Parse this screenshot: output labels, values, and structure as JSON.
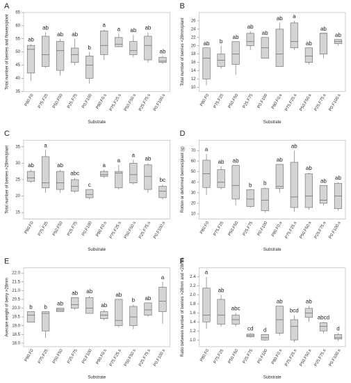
{
  "chart_data": [
    {
      "type": "box",
      "title": "A",
      "y_label": "Total number of berries and flowers/plant",
      "x_label": "Substrate",
      "categories": [
        "P80.F0",
        "P75.F25",
        "P50.F50",
        "P25.F75",
        "P0.F100",
        "P80.F0.s",
        "P75.F25.s",
        "P50.F50.s",
        "P25.F75.s",
        "P0.F100.s"
      ],
      "min": [
        39,
        44,
        41,
        45,
        38,
        47,
        52,
        48,
        46,
        45.5
      ],
      "q1": [
        42,
        44.5,
        43,
        46,
        40,
        49,
        52,
        49,
        47,
        46
      ],
      "median": [
        51,
        49,
        50.5,
        49,
        45,
        52.5,
        53,
        50.5,
        52.5,
        46.5
      ],
      "q3": [
        52.5,
        56,
        54,
        51.5,
        48.5,
        58,
        55.5,
        54,
        56,
        48
      ],
      "max": [
        53,
        57.5,
        55,
        55,
        50,
        58.5,
        57,
        56.5,
        57.5,
        48.5
      ],
      "annotations": [
        "ab",
        "ab",
        "ab",
        "ab",
        "b",
        "a",
        "a",
        "ab",
        "ab",
        "ab"
      ],
      "color": "#d4d4d4",
      "ylim": [
        35,
        65
      ],
      "yticks": [
        35,
        40,
        45,
        50,
        55,
        60,
        65
      ]
    },
    {
      "type": "box",
      "title": "B",
      "y_label": "Total number of berries <28mm/plant",
      "x_label": "Substrate",
      "categories": [
        "P80.F0",
        "P75.F25",
        "P50.F50",
        "P25.F75",
        "P0.F100",
        "P80.F0.s",
        "P75.F25.s",
        "P50.F50.s",
        "P25.F75.s",
        "P0.F100.s"
      ],
      "min": [
        10.5,
        14.5,
        13,
        19,
        17,
        15,
        19,
        15.5,
        17,
        20
      ],
      "q1": [
        12,
        15,
        15.5,
        20,
        17,
        15,
        19.5,
        16,
        18,
        20.5
      ],
      "median": [
        17,
        16.5,
        18,
        21,
        19.5,
        18,
        21,
        17.5,
        23,
        21
      ],
      "q3": [
        19.5,
        18,
        21,
        23,
        22,
        24,
        25.5,
        19.5,
        23,
        21.5
      ],
      "max": [
        19.5,
        20,
        21,
        23.5,
        22,
        25.5,
        26,
        19.5,
        23,
        21.5
      ],
      "annotations": [
        "ab",
        "b",
        "ab",
        "ab",
        "ab",
        "ab",
        "a",
        "ab",
        "ab",
        "ab"
      ],
      "color": "#d4d4d4",
      "ylim": [
        9,
        28
      ],
      "yticks": [
        10,
        12,
        14,
        16,
        18,
        20,
        22,
        24,
        26
      ]
    },
    {
      "type": "box",
      "title": "C",
      "y_label": "Total number of berries >28mm/plant",
      "x_label": "Substrate",
      "categories": [
        "P80.F0",
        "P75.F25",
        "P50.F50",
        "P25.F75",
        "P0.F100",
        "P80.F0.s",
        "P75.F25.s",
        "P50.F50.s",
        "P25.F75.s",
        "P0.F100.s"
      ],
      "min": [
        24,
        21,
        21,
        21,
        19,
        25.5,
        22,
        23.5,
        21,
        19
      ],
      "q1": [
        24.5,
        22.5,
        22,
        21.5,
        19.5,
        26,
        22.5,
        24,
        22,
        19.5
      ],
      "median": [
        25.5,
        24,
        24,
        23,
        20.5,
        26.5,
        27,
        26.5,
        26,
        21.5
      ],
      "q3": [
        27.5,
        32,
        27.5,
        25,
        22,
        27.5,
        27.5,
        30,
        29.5,
        23
      ],
      "max": [
        28,
        34,
        28,
        25.5,
        22,
        28,
        29.5,
        31,
        30,
        23.5
      ],
      "annotations": [
        "ab",
        "a",
        "ab",
        "abc",
        "c",
        "a",
        "a",
        "a",
        "ab",
        "bc"
      ],
      "color": "#d4d4d4",
      "ylim": [
        13,
        37
      ],
      "yticks": [
        15,
        20,
        25,
        30,
        35
      ]
    },
    {
      "type": "box",
      "title": "D",
      "y_label": "Rotten or deformed berries/plant (g)",
      "x_label": "Substrate",
      "categories": [
        "P80.F0",
        "P75.F25",
        "P50.F50",
        "P25.F75",
        "P0.F100",
        "P80.F0.s",
        "P75.F25.s",
        "P50.F50.s",
        "P25.F75.s",
        "P0.F100.s"
      ],
      "min": [
        28,
        33,
        18,
        16,
        11,
        30,
        12,
        14,
        18,
        13
      ],
      "q1": [
        35,
        35,
        24,
        17,
        13,
        34,
        16,
        16,
        20,
        15
      ],
      "median": [
        48,
        40,
        37,
        24,
        23,
        36,
        26,
        27,
        23,
        27
      ],
      "q3": [
        61,
        52,
        56,
        33,
        34,
        57,
        59,
        48,
        37,
        39
      ],
      "max": [
        67,
        55,
        56,
        33,
        35,
        57,
        70,
        49,
        37,
        40
      ],
      "annotations": [
        "a",
        "ab",
        "ab",
        "b",
        "b",
        "ab",
        "ab",
        "ab",
        "ab",
        "ab"
      ],
      "color": "#d4d4d4",
      "ylim": [
        5,
        80
      ],
      "yticks": [
        10,
        20,
        30,
        40,
        50,
        60,
        70
      ]
    },
    {
      "type": "box",
      "title": "E",
      "y_label": "Avecare weight of berry >28mm",
      "x_label": "Substrate",
      "categories": [
        "P80.F0",
        "P75.F25",
        "P50.F50",
        "P25.F75",
        "P0.F100",
        "P80.F0.s",
        "P75.F25.s",
        "P50.F50.s",
        "P25.F75.s",
        "P0.F100.s"
      ],
      "min": [
        19.2,
        18.3,
        19.8,
        19.9,
        19.7,
        19.3,
        18.9,
        18.8,
        19.5,
        19.1
      ],
      "q1": [
        19.2,
        18.7,
        19.8,
        20.0,
        19.7,
        19.4,
        19.0,
        19.0,
        19.6,
        19.8
      ],
      "median": [
        19.6,
        19.7,
        19.9,
        20.2,
        20.0,
        19.6,
        19.3,
        19.5,
        19.9,
        20.4
      ],
      "q3": [
        19.8,
        19.8,
        20.0,
        20.6,
        20.6,
        19.8,
        20.5,
        20.1,
        20.3,
        21.2
      ],
      "max": [
        19.8,
        19.8,
        20.0,
        20.6,
        20.7,
        19.9,
        20.5,
        20.2,
        20.3,
        21.5
      ],
      "annotations": [
        "b",
        "b",
        "ab",
        "ab",
        "ab",
        "ab",
        "ab",
        "b",
        "ab",
        "a"
      ],
      "color": "#d4d4d4",
      "ylim": [
        17.8,
        22.3
      ],
      "yticks": [
        {
          "value": 18,
          "label": "18.0"
        },
        18.5,
        {
          "value": 19,
          "label": "19.0"
        },
        19.5,
        {
          "value": 20,
          "label": "20.0"
        },
        20.5,
        {
          "value": 21,
          "label": "21.0"
        },
        21.5,
        {
          "value": 22,
          "label": "22.0"
        }
      ]
    },
    {
      "type": "box",
      "title": "F",
      "y_label": "Ratio between number of berries >28mm and <28mm",
      "x_label": "Substrate",
      "categories": [
        "P80.F0",
        "P75.F25",
        "P50.F50",
        "P25.F75",
        "P0.F100",
        "P80.F0.s",
        "P75.F25.s",
        "P50.F50.s",
        "P25.F75.s",
        "P0.F100.s"
      ],
      "min": [
        1.25,
        1.3,
        1.3,
        1.05,
        0.98,
        1.1,
        0.95,
        1.4,
        1.15,
        0.98
      ],
      "q1": [
        1.4,
        1.35,
        1.35,
        1.07,
        1.0,
        1.15,
        1.0,
        1.5,
        1.2,
        1.02
      ],
      "median": [
        1.55,
        1.55,
        1.45,
        1.1,
        1.05,
        1.45,
        1.3,
        1.6,
        1.3,
        1.05
      ],
      "q3": [
        2.15,
        1.9,
        1.55,
        1.13,
        1.12,
        1.75,
        1.45,
        1.7,
        1.38,
        1.12
      ],
      "max": [
        2.4,
        2.0,
        1.6,
        1.15,
        1.12,
        1.75,
        1.55,
        1.75,
        1.4,
        1.15
      ],
      "annotations": [
        "a",
        "ab",
        "abc",
        "cd",
        "d",
        "ab",
        "bcd",
        "ab",
        "abcd",
        "d"
      ],
      "color": "#d4d4d4",
      "ylim": [
        0.85,
        2.6
      ],
      "yticks": [
        {
          "value": 1,
          "label": "1.0"
        },
        1.2,
        1.4,
        1.6,
        1.8,
        {
          "value": 2,
          "label": "2.0"
        },
        2.2,
        2.4
      ]
    }
  ]
}
